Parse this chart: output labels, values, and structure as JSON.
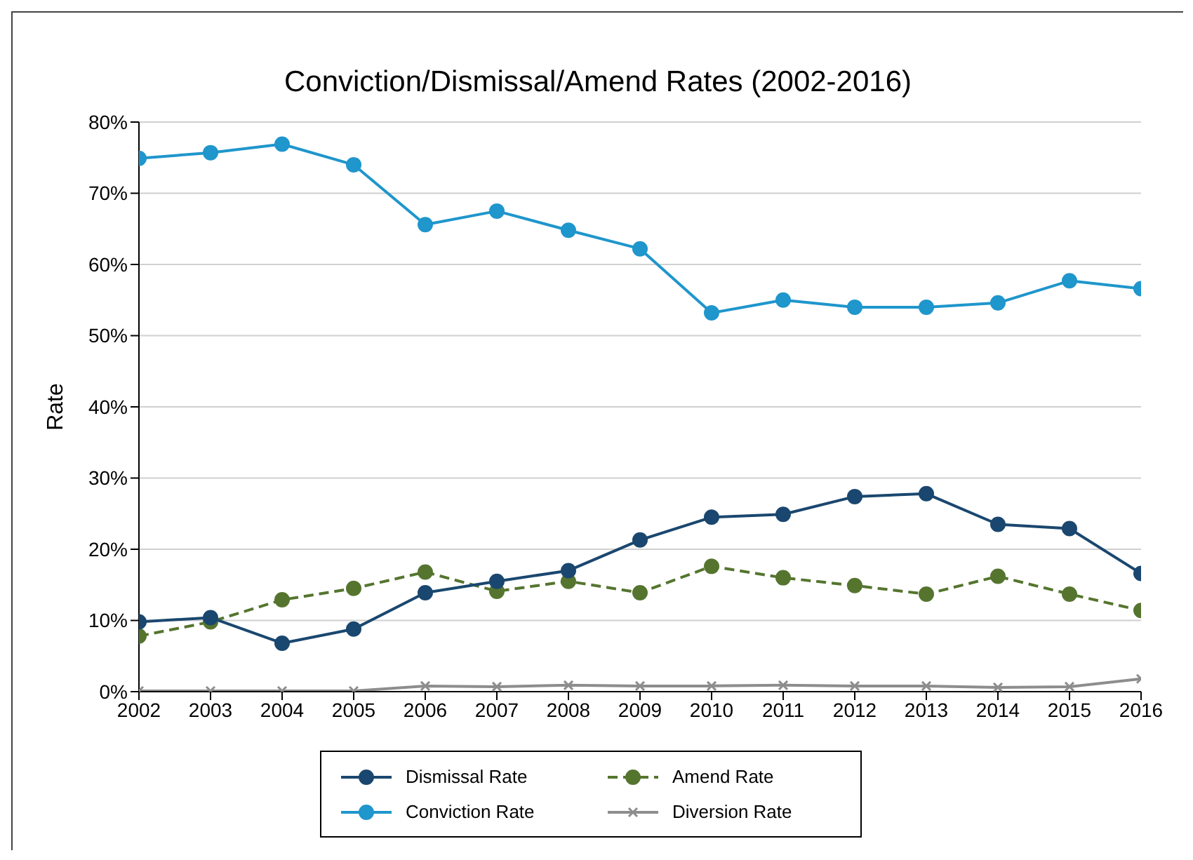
{
  "chart_data": {
    "type": "line",
    "title": "Conviction/Dismissal/Amend Rates (2002-2016)",
    "ylabel": "Rate",
    "x": [
      2002,
      2003,
      2004,
      2005,
      2006,
      2007,
      2008,
      2009,
      2010,
      2011,
      2012,
      2013,
      2014,
      2015,
      2016
    ],
    "xlim": [
      2002,
      2016
    ],
    "xticks": [
      2002,
      2003,
      2004,
      2005,
      2006,
      2007,
      2008,
      2009,
      2010,
      2011,
      2012,
      2013,
      2014,
      2015,
      2016
    ],
    "ylim": [
      0,
      80
    ],
    "yticks": [
      {
        "value": 0,
        "label": "0%"
      },
      {
        "value": 10,
        "label": "10%"
      },
      {
        "value": 20,
        "label": "20%"
      },
      {
        "value": 30,
        "label": "30%"
      },
      {
        "value": 40,
        "label": "40%"
      },
      {
        "value": 50,
        "label": "50%"
      },
      {
        "value": 60,
        "label": "60%"
      },
      {
        "value": 70,
        "label": "70%"
      },
      {
        "value": 80,
        "label": "80%"
      }
    ],
    "grid": "y",
    "legend": "bottom",
    "series": [
      {
        "name": "Dismissal Rate",
        "color": "#1a476f",
        "marker": "circle",
        "line_style": "solid",
        "values": [
          9.8,
          10.4,
          6.8,
          8.8,
          13.9,
          15.5,
          17.0,
          21.3,
          24.5,
          24.9,
          27.4,
          27.8,
          23.5,
          22.9,
          16.6
        ]
      },
      {
        "name": "Amend Rate",
        "color": "#55752f",
        "marker": "circle",
        "line_style": "dashed",
        "values": [
          7.8,
          9.8,
          12.9,
          14.5,
          16.8,
          14.1,
          15.5,
          13.9,
          17.6,
          16.0,
          14.9,
          13.7,
          16.2,
          13.7,
          11.4
        ]
      },
      {
        "name": "Conviction Rate",
        "color": "#1f96cc",
        "marker": "circle",
        "line_style": "solid",
        "values": [
          74.9,
          75.7,
          76.9,
          74.0,
          65.6,
          67.5,
          64.8,
          62.2,
          53.2,
          55.0,
          54.0,
          54.0,
          54.6,
          57.7,
          56.6
        ]
      },
      {
        "name": "Diversion Rate",
        "color": "#8d8d8d",
        "marker": "cross",
        "line_style": "solid",
        "values": [
          0.1,
          0.1,
          0.1,
          0.1,
          0.8,
          0.7,
          0.9,
          0.8,
          0.8,
          0.9,
          0.8,
          0.8,
          0.6,
          0.7,
          1.8
        ]
      }
    ]
  }
}
